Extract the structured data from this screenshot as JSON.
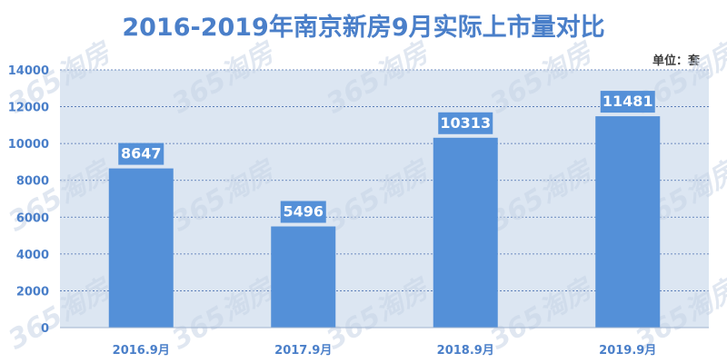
{
  "unit_label": "单位：套",
  "watermark_text": "365淘房",
  "colors": {
    "bar": "#5490d8",
    "title": "#4a7fc9",
    "plot_bg": "#dce6f2",
    "grid": "#4a6fb0",
    "axis_text": "#4a7fc9",
    "label_box": "#5490d8",
    "label_text": "#ffffff",
    "watermark": "#c8d4e6"
  },
  "chart_data": {
    "type": "bar",
    "title": "2016-2019年南京新房9月实际上市量对比",
    "xlabel": "",
    "ylabel": "",
    "categories": [
      "2016.9月",
      "2017.9月",
      "2018.9月",
      "2019.9月"
    ],
    "values": [
      8647,
      5496,
      10313,
      11481
    ],
    "ylim": [
      0,
      14000
    ],
    "yticks": [
      0,
      2000,
      4000,
      6000,
      8000,
      10000,
      12000,
      14000
    ],
    "grid": true,
    "legend": "none"
  }
}
